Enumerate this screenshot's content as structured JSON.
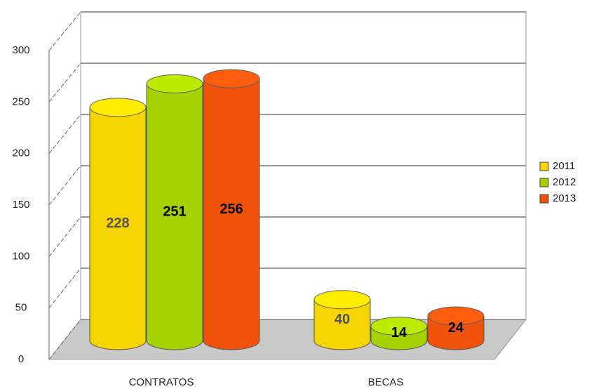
{
  "chart_data": {
    "type": "bar3d-cylinder",
    "categories": [
      "CONTRATOS",
      "BECAS"
    ],
    "series": [
      {
        "name": "2011",
        "color": "#f5d400",
        "values": [
          228,
          40
        ]
      },
      {
        "name": "2012",
        "color": "#a6d200",
        "values": [
          251,
          14
        ]
      },
      {
        "name": "2013",
        "color": "#f0520c",
        "values": [
          256,
          24
        ]
      }
    ],
    "ylim": [
      0,
      300
    ],
    "yticks": [
      0,
      50,
      100,
      150,
      200,
      250,
      300
    ],
    "grid": true,
    "legend": "right"
  }
}
